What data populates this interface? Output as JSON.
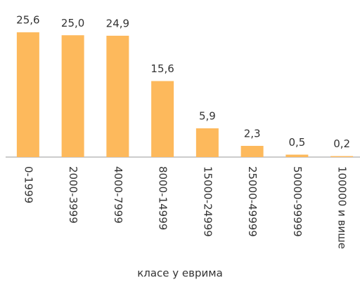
{
  "chart_data": {
    "type": "bar",
    "categories": [
      "0-1999",
      "2000-3999",
      "4000-7999",
      "8000-14999",
      "15000-24999",
      "25000-49999",
      "50000-99999",
      "100000 и више"
    ],
    "values": [
      25.6,
      25.0,
      24.9,
      15.6,
      5.9,
      2.3,
      0.5,
      0.2
    ],
    "value_labels": [
      "25,6",
      "25,0",
      "24,9",
      "15,6",
      "5,9",
      "2,3",
      "0,5",
      "0,2"
    ],
    "color": "#fdb95c",
    "x_label": "класе у еврима"
  }
}
